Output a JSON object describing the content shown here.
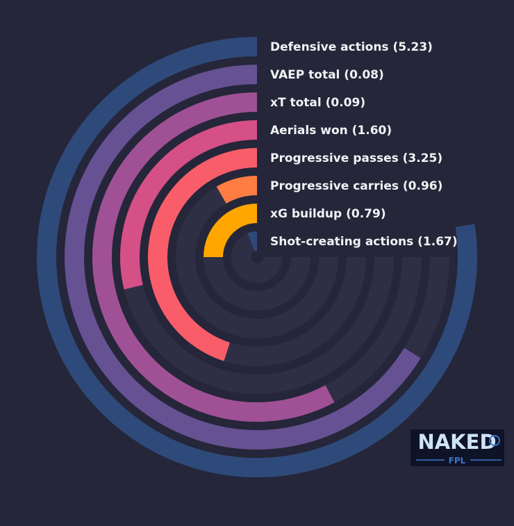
{
  "chart_data": {
    "type": "radial-bar",
    "ring_track_color": "#2e2f45",
    "background_color": "#252639",
    "series": [
      {
        "label": "Defensive actions (5.23)",
        "fraction": 0.774,
        "color": "#2e4a7a"
      },
      {
        "label": "VAEP total (0.08)",
        "fraction": 0.662,
        "color": "#665193"
      },
      {
        "label": "xT total (0.09)",
        "fraction": 0.578,
        "color": "#a05195"
      },
      {
        "label": "Aerials won (1.60)",
        "fraction": 0.288,
        "color": "#d45087"
      },
      {
        "label": "Progressive passes (3.25)",
        "fraction": 0.451,
        "color": "#f95d6a"
      },
      {
        "label": "Progressive carries (0.96)",
        "fraction": 0.083,
        "color": "#ff7c43"
      },
      {
        "label": "xG buildup (0.79)",
        "fraction": 0.25,
        "color": "#ffa600"
      },
      {
        "label": "Shot-creating actions (1.67)",
        "fraction": 0.06,
        "color": "#2e4a7a"
      }
    ]
  },
  "logo": {
    "text_main": "NAKED",
    "text_sub": "FPL",
    "bg_color": "#0f1328",
    "text_color": "#cfe3f5",
    "accent_color": "#3b74c9"
  }
}
